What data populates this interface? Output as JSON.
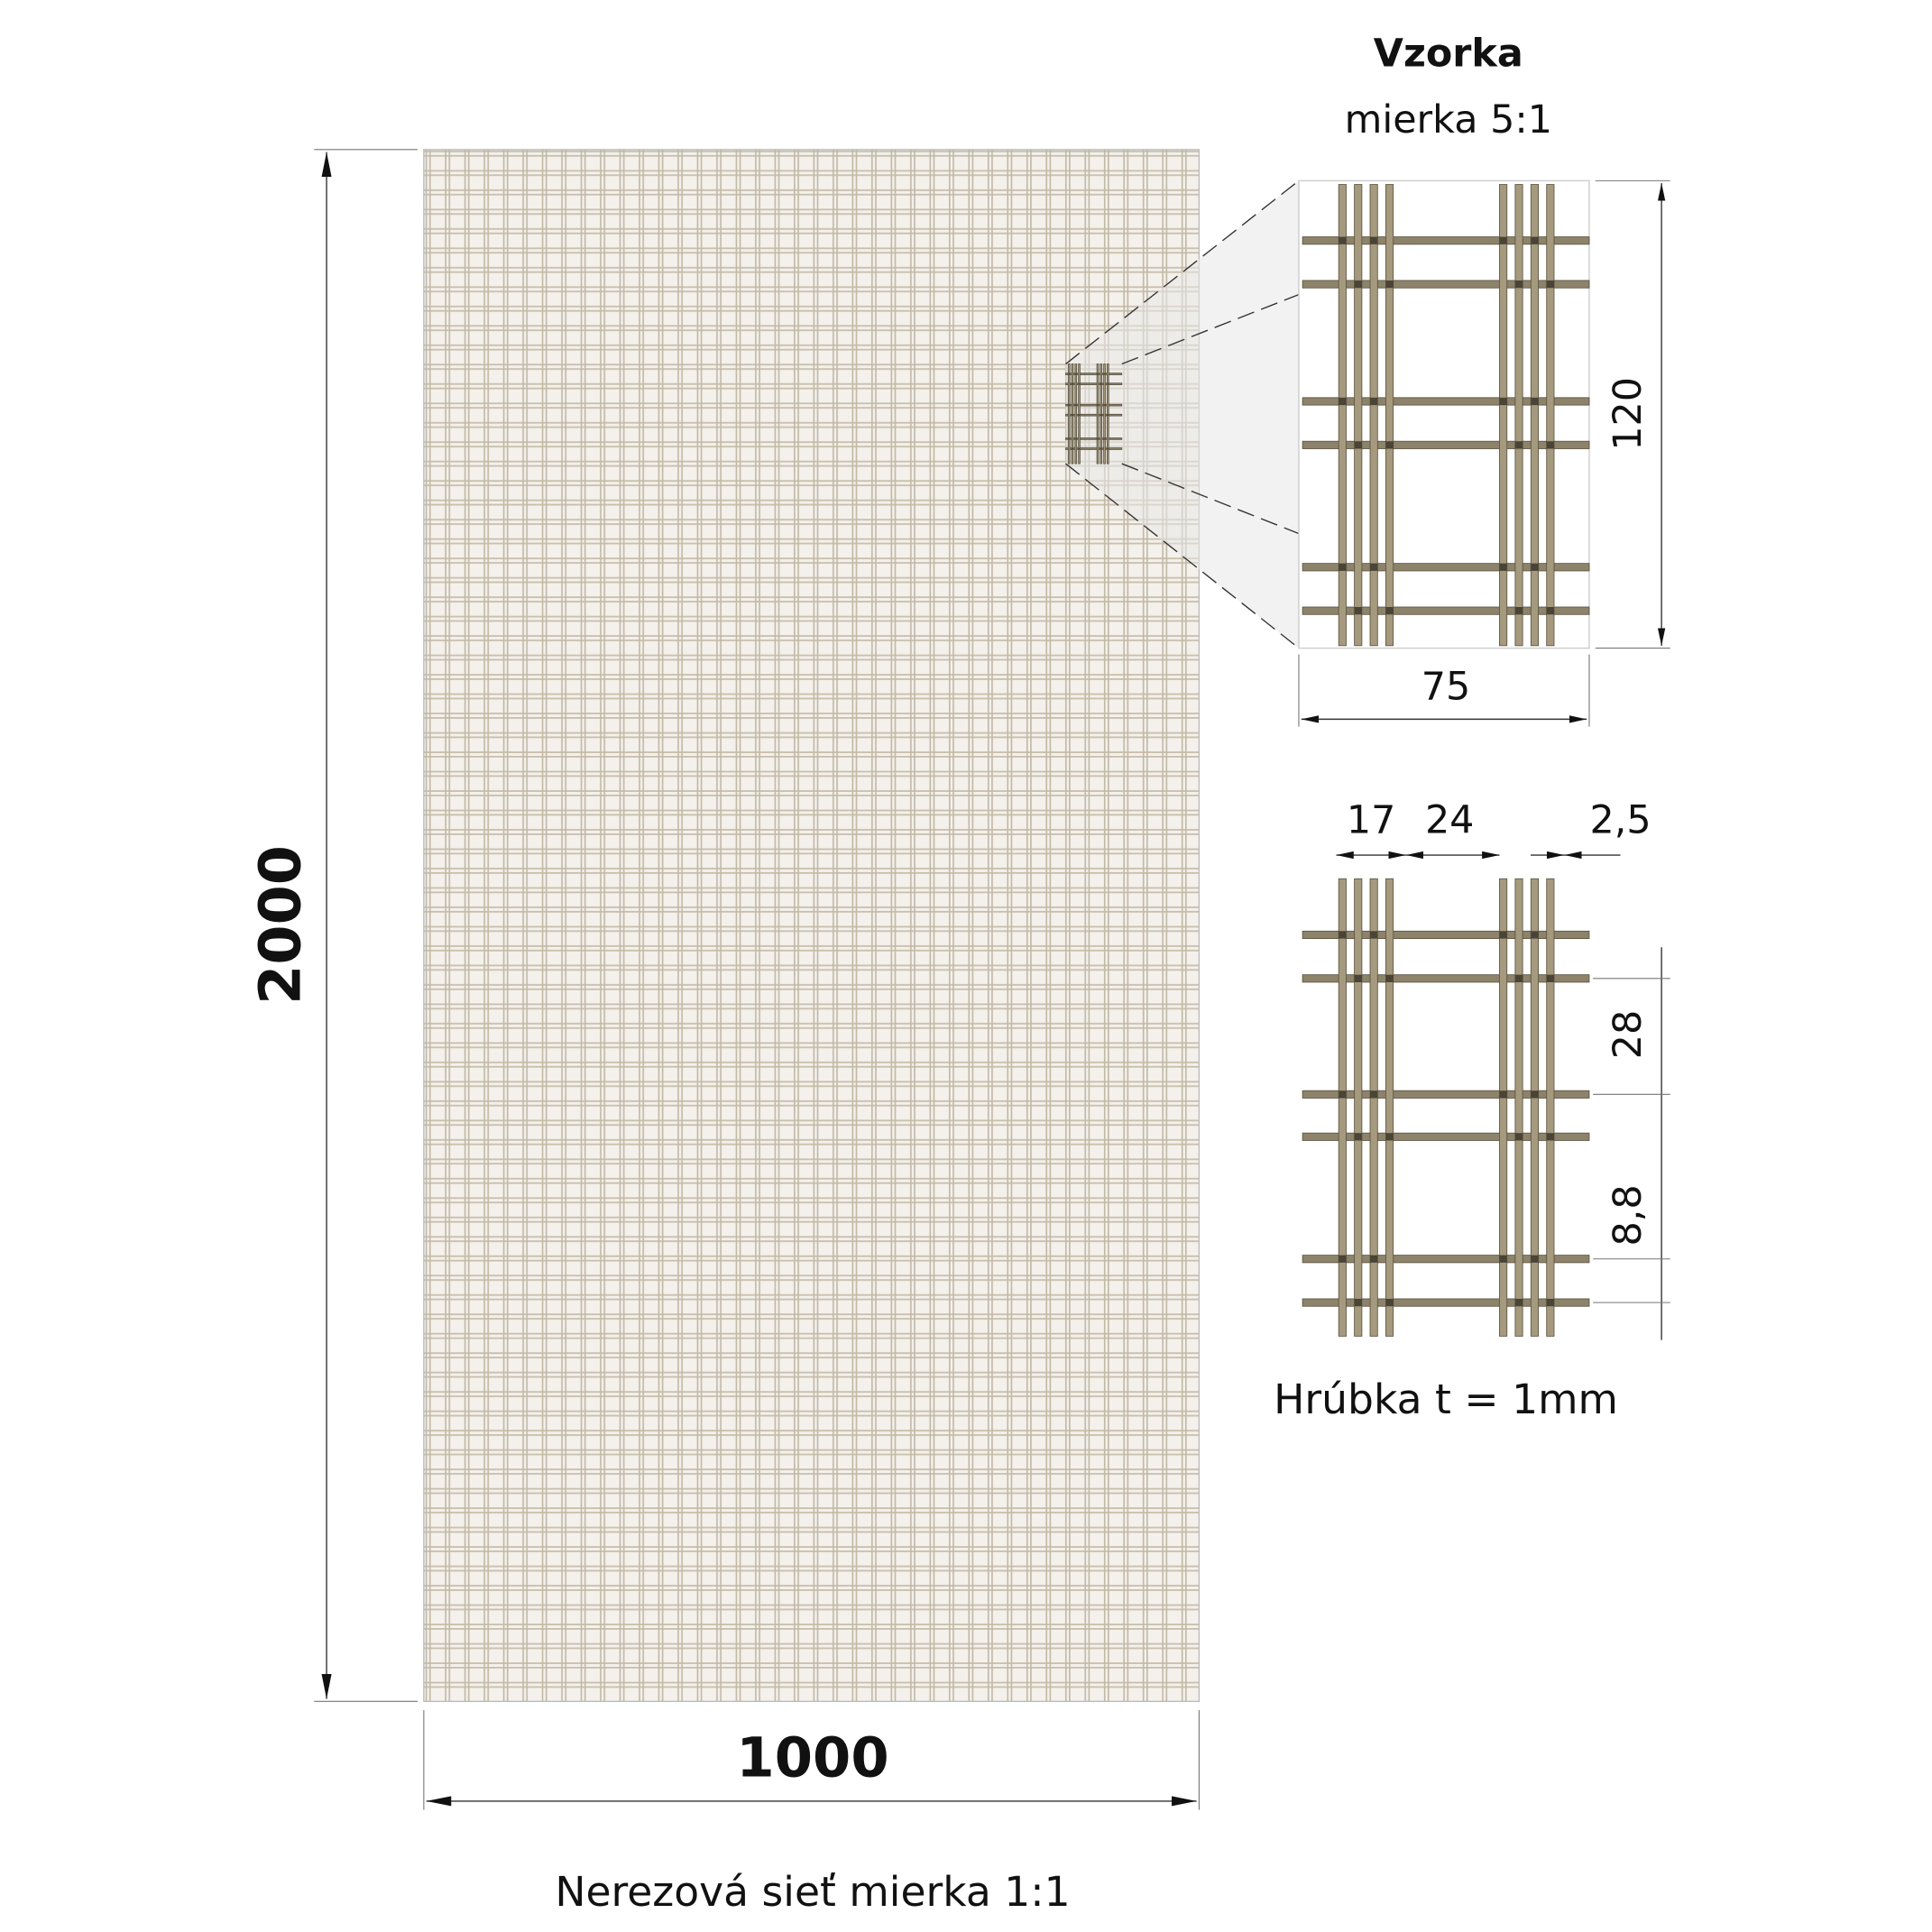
{
  "sample": {
    "title": "Vzorka",
    "scale": "mierka 5:1",
    "height": "120",
    "width": "75"
  },
  "detail": {
    "dim_group": "17",
    "dim_gap": "24",
    "dim_wire": "2,5",
    "dim_pair": "28",
    "dim_space": "8,8",
    "thickness": "Hrúbka t = 1mm"
  },
  "panel": {
    "height": "2000",
    "width": "1000",
    "caption": "Nerezová sieť mierka 1:1"
  }
}
